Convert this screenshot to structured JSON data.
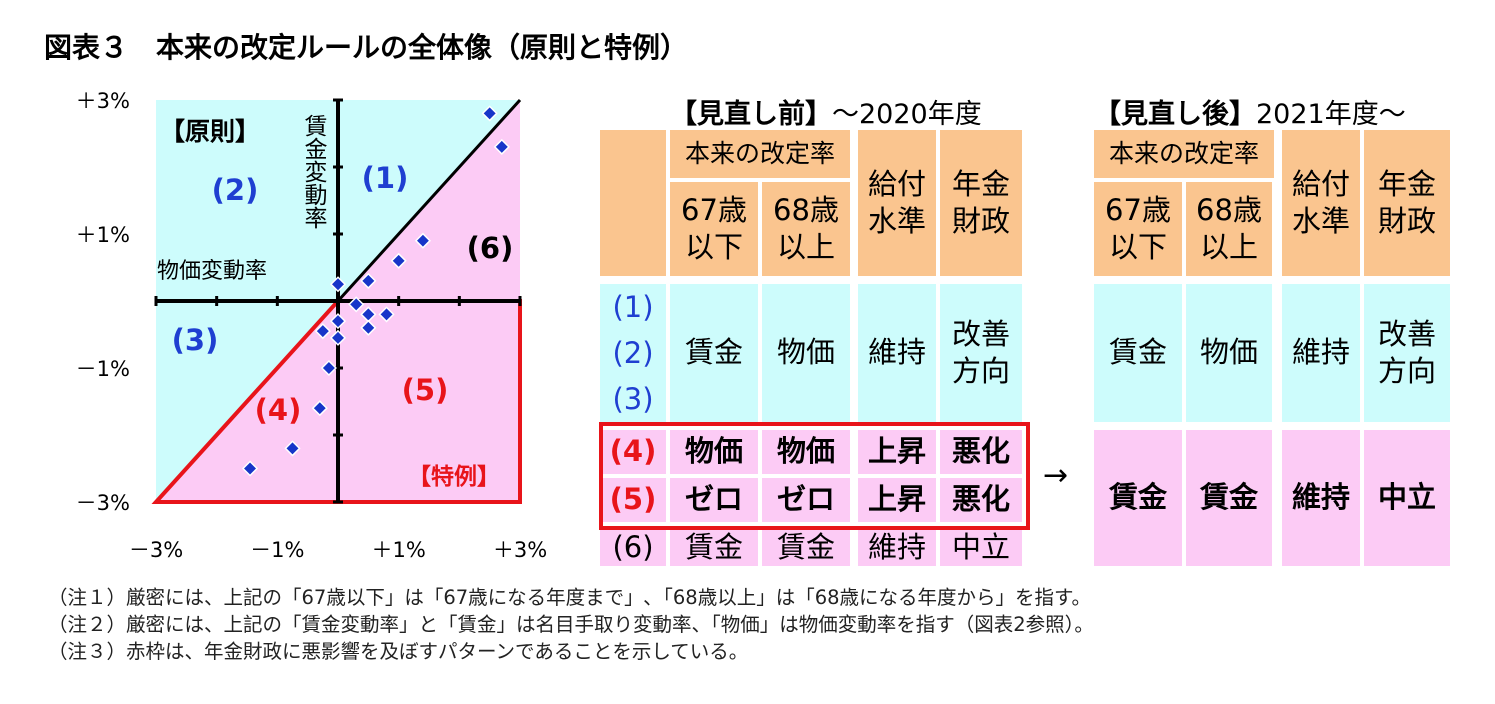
{
  "title": "図表３　本来の改定ルールの全体像（原則と特例）",
  "chart_data": {
    "type": "scatter",
    "xlabel": "物価変動率",
    "ylabel": "賃金変動率",
    "xlim": [
      -3,
      3
    ],
    "ylim": [
      -3,
      3
    ],
    "x_ticks": [
      "－3%",
      "－1%",
      "＋1%",
      "＋3%"
    ],
    "y_ticks": [
      "＋3%",
      "＋1%",
      "－1%",
      "－3%"
    ],
    "principle_label": "【原則】",
    "exception_label": "【特例】",
    "regions": [
      "(1)",
      "(2)",
      "(3)",
      "(4)",
      "(5)",
      "(6)"
    ],
    "points": [
      [
        2.5,
        2.8
      ],
      [
        2.7,
        2.3
      ],
      [
        1.4,
        0.9
      ],
      [
        1.0,
        0.6
      ],
      [
        0.5,
        0.3
      ],
      [
        0.0,
        0.25
      ],
      [
        0.3,
        -0.05
      ],
      [
        0.5,
        -0.2
      ],
      [
        0.8,
        -0.2
      ],
      [
        0.5,
        -0.4
      ],
      [
        0.0,
        -0.3
      ],
      [
        -0.25,
        -0.45
      ],
      [
        0.0,
        -0.55
      ],
      [
        -0.15,
        -1.0
      ],
      [
        -0.3,
        -1.6
      ],
      [
        -0.75,
        -2.2
      ],
      [
        -1.45,
        -2.5
      ]
    ],
    "colors": {
      "cyan": "#cdfcfc",
      "pink": "#fccbf5",
      "red": "#e8141a",
      "blue": "#1f3fd1",
      "point": "#1735c9"
    }
  },
  "table_before": {
    "heading_bold": "【見直し前】",
    "heading_rest": "～2020年度",
    "header": {
      "group": "本来の改定率",
      "col1": "67歳\n以下",
      "col2": "68歳\n以上",
      "col3": "給付\n水準",
      "col4": "年金\n財政"
    },
    "row_labels": [
      "(1)",
      "(2)",
      "(3)",
      "(4)",
      "(5)",
      "(6)"
    ],
    "rows123": [
      "賃金",
      "物価",
      "維持",
      "改善\n方向"
    ],
    "row4": [
      "物価",
      "物価",
      "上昇",
      "悪化"
    ],
    "row5": [
      "ゼロ",
      "ゼロ",
      "上昇",
      "悪化"
    ],
    "row6": [
      "賃金",
      "賃金",
      "維持",
      "中立"
    ]
  },
  "arrow": "→",
  "table_after": {
    "heading_bold": "【見直し後】",
    "heading_rest": "2021年度～",
    "header": {
      "group": "本来の改定率",
      "col1": "67歳\n以下",
      "col2": "68歳\n以上",
      "col3": "給付\n水準",
      "col4": "年金\n財政"
    },
    "rows123": [
      "賃金",
      "物価",
      "維持",
      "改善\n方向"
    ],
    "rows456": [
      "賃金",
      "賃金",
      "維持",
      "中立"
    ]
  },
  "notes": [
    "（注１）厳密には、上記の「67歳以下」は「67歳になる年度まで」､「68歳以上」は「68歳になる年度から」を指す。",
    "（注２）厳密には、上記の「賃金変動率」と「賃金」は名目手取り変動率、「物価」は物価変動率を指す（図表2参照）。",
    "（注３）赤枠は、年金財政に悪影響を及ぼすパターンであることを示している。"
  ]
}
